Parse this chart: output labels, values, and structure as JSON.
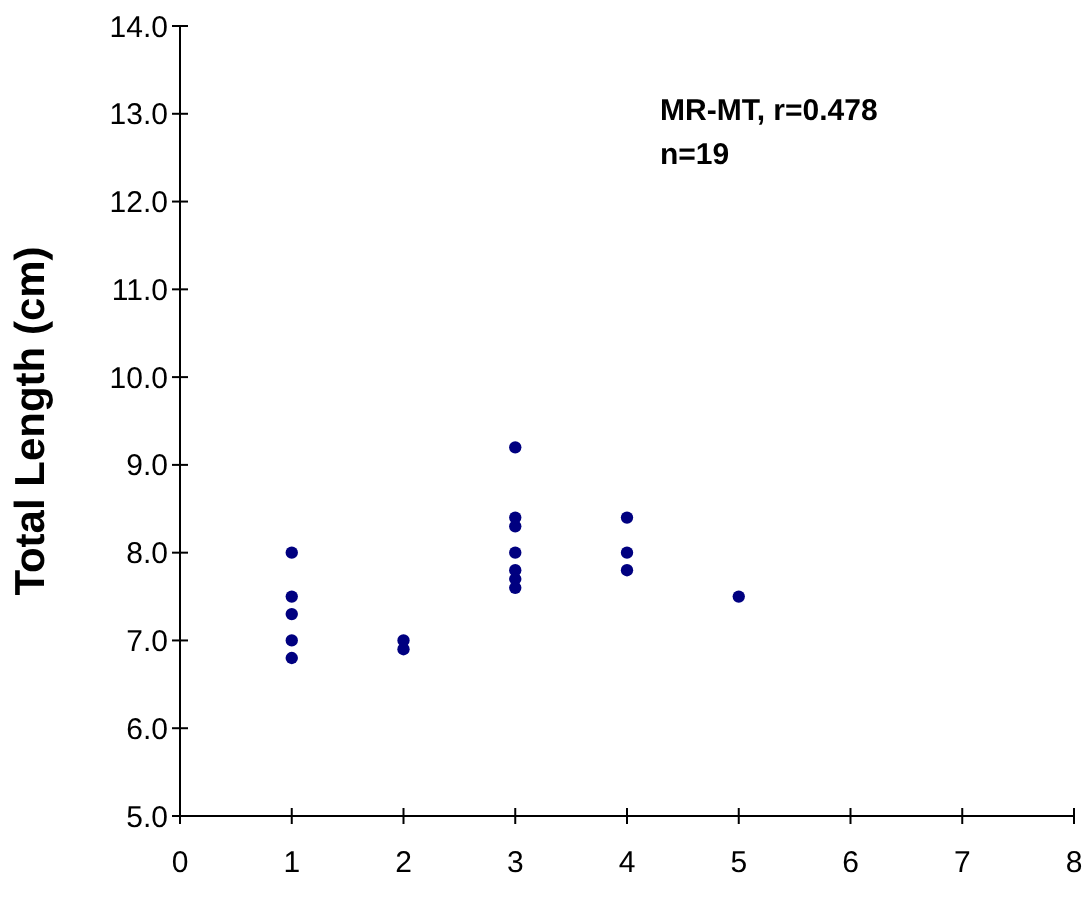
{
  "chart_data": {
    "type": "scatter",
    "ylabel": "Total Length (cm)",
    "annotations": [
      "MR-MT, r=0.478\nn=19"
    ],
    "x": [
      1,
      1,
      1,
      1,
      1,
      2,
      2,
      3,
      3,
      3,
      3,
      3,
      3,
      3,
      4,
      4,
      4,
      5
    ],
    "series": [
      {
        "color": "#000080",
        "values": [
          8.0,
          7.5,
          7.3,
          7.0,
          6.8,
          7.0,
          6.9,
          9.2,
          8.4,
          8.3,
          8.0,
          7.8,
          7.7,
          7.6,
          8.4,
          8.0,
          7.8,
          7.5
        ]
      }
    ],
    "xlim": [
      0,
      8
    ],
    "xticks": [
      0,
      1,
      2,
      3,
      4,
      5,
      6,
      7,
      8
    ],
    "ylim": [
      5,
      14
    ],
    "yticks": [
      {
        "value": 5,
        "label": "5.0"
      },
      {
        "value": 6,
        "label": "6.0"
      },
      {
        "value": 7,
        "label": "7.0"
      },
      {
        "value": 8,
        "label": "8.0"
      },
      {
        "value": 9,
        "label": "9.0"
      },
      {
        "value": 10,
        "label": "10.0"
      },
      {
        "value": 11,
        "label": "11.0"
      },
      {
        "value": 12,
        "label": "12.0"
      },
      {
        "value": 13,
        "label": "13.0"
      },
      {
        "value": 14,
        "label": "14.0"
      }
    ],
    "grid": false,
    "marker": "circle"
  }
}
